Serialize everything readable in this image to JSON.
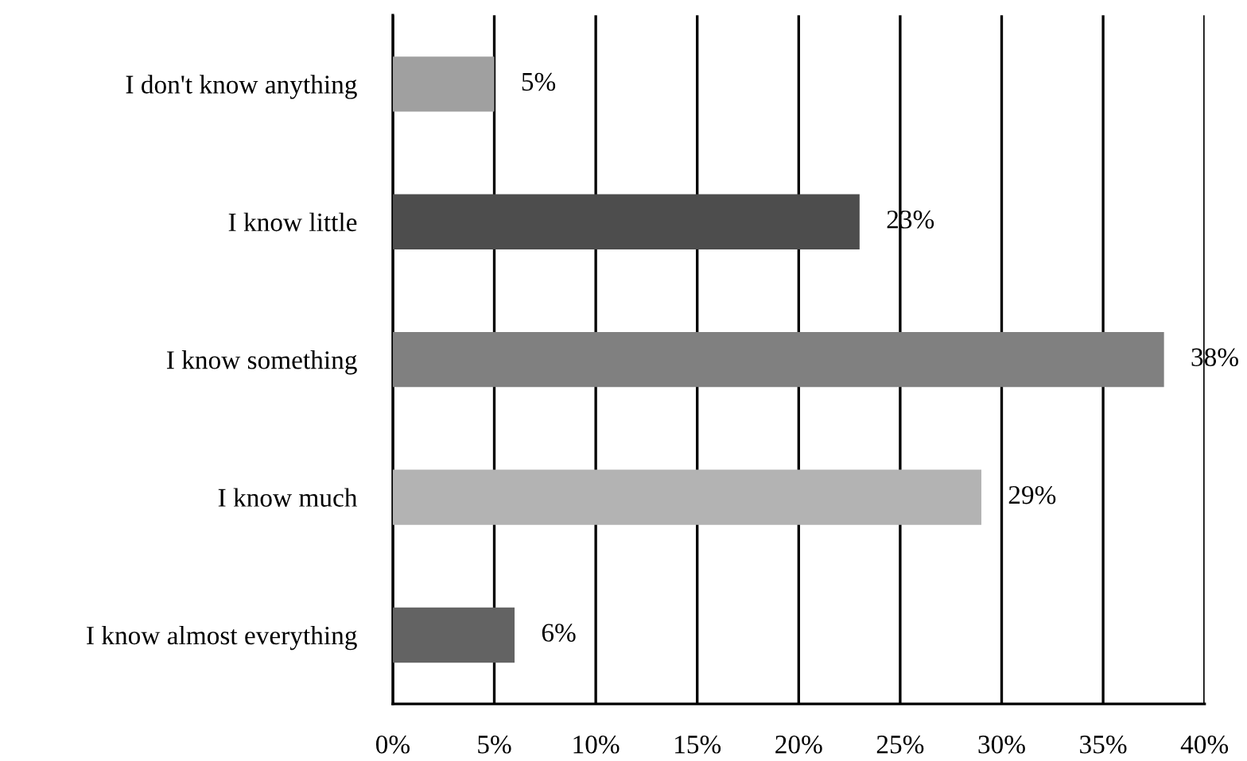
{
  "chart_data": {
    "type": "bar",
    "orientation": "horizontal",
    "categories": [
      "I don't know anything",
      "I know little",
      "I know something",
      "I know much",
      "I know almost everything"
    ],
    "values": [
      5,
      23,
      38,
      29,
      6
    ],
    "colors": [
      "#a0a0a0",
      "#4d4d4d",
      "#808080",
      "#b3b3b3",
      "#636363"
    ],
    "value_labels": [
      "5%",
      "23%",
      "38%",
      "29%",
      "6%"
    ],
    "xlim": [
      0,
      40
    ],
    "xticks": [
      {
        "value": 0,
        "label": "0%"
      },
      {
        "value": 5,
        "label": "5%"
      },
      {
        "value": 10,
        "label": "10%"
      },
      {
        "value": 15,
        "label": "15%"
      },
      {
        "value": 20,
        "label": "20%"
      },
      {
        "value": 25,
        "label": "25%"
      },
      {
        "value": 30,
        "label": "30%"
      },
      {
        "value": 35,
        "label": "35%"
      },
      {
        "value": 40,
        "label": "40%"
      }
    ],
    "grid": "x",
    "legend": false
  }
}
